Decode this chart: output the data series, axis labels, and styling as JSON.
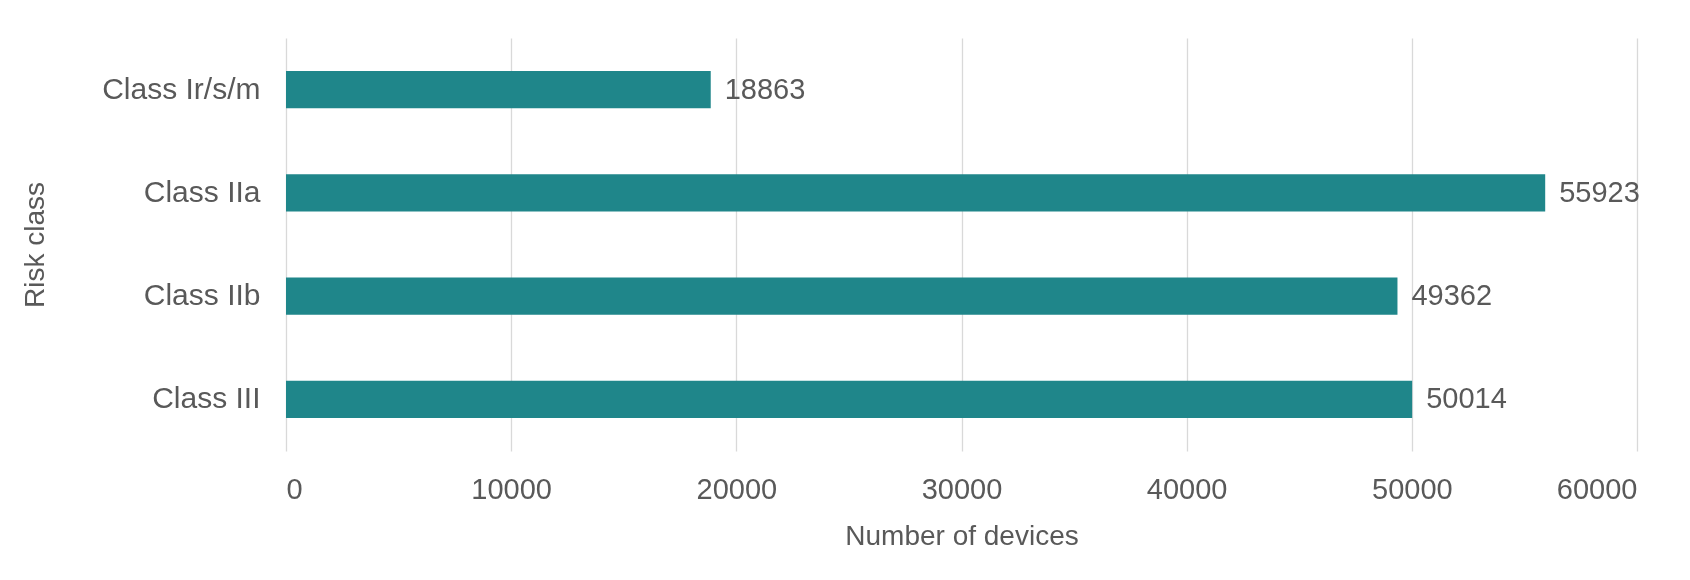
{
  "chart_data": {
    "type": "bar",
    "orientation": "horizontal",
    "categories": [
      "Class Ir/s/m",
      "Class IIa",
      "Class IIb",
      "Class III"
    ],
    "values": [
      18863,
      55923,
      49362,
      50014
    ],
    "color": "#1f868a",
    "xlabel": "Number of devices",
    "ylabel": "Risk class",
    "xlim": [
      0,
      60000
    ],
    "xticks": [
      0,
      10000,
      20000,
      30000,
      40000,
      50000,
      60000
    ],
    "grid": "x",
    "data_labels": true
  }
}
